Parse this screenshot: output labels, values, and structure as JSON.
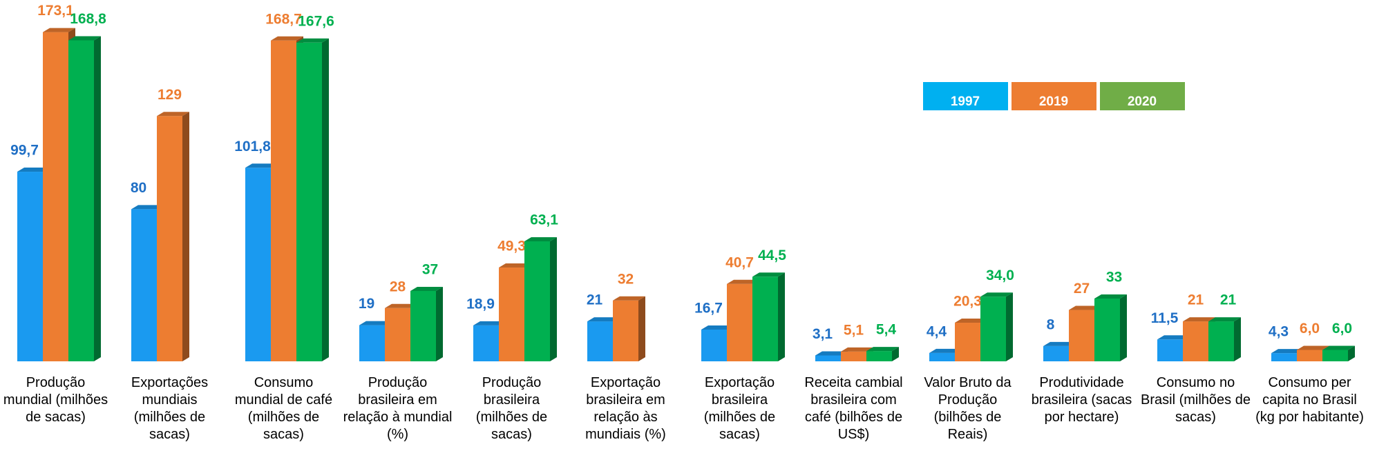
{
  "chart_data": {
    "type": "bar3d",
    "categories": [
      "Produção mundial (milhões de sacas)",
      "Exportações mundiais (milhões de sacas)",
      "Consumo mundial de café (milhões de sacas)",
      "Produção brasileira em relação à mundial (%)",
      "Produção brasileira (milhões de sacas)",
      "Exportação brasileira em relação às mundiais (%)",
      "Exportação brasileira (milhões de sacas)",
      "Receita cambial brasileira com café (bilhões de US$)",
      "Valor Bruto da Produção (bilhões de Reais)",
      "Produtividade brasileira (sacas por hectare)",
      "Consumo no Brasil (milhões de sacas)",
      "Consumo per capita no Brasil (kg por habitante)"
    ],
    "series": [
      {
        "name": "1997",
        "color": "#1a9af0",
        "label_color": "#1f6fc5",
        "legend_color": "#00b0f0",
        "values": [
          99.7,
          80,
          101.8,
          19,
          18.9,
          21,
          16.7,
          3.1,
          4.4,
          8,
          11.5,
          4.3
        ],
        "value_labels": [
          "99,7",
          "80",
          "101,8",
          "19",
          "18,9",
          "21",
          "16,7",
          "3,1",
          "4,4",
          "8",
          "11,5",
          "4,3"
        ]
      },
      {
        "name": "2019",
        "color": "#ed7d31",
        "label_color": "#ed7d31",
        "legend_color": "#ed7d31",
        "values": [
          173.1,
          129,
          168.7,
          28,
          49.3,
          32,
          40.7,
          5.1,
          20.3,
          27,
          21,
          6.0
        ],
        "value_labels": [
          "173,1",
          "129",
          "168,7",
          "28",
          "49,3",
          "32",
          "40,7",
          "5,1",
          "20,3",
          "27",
          "21",
          "6,0"
        ]
      },
      {
        "name": "2020",
        "color": "#00b050",
        "label_color": "#00b050",
        "legend_color": "#70ad47",
        "values": [
          168.8,
          null,
          167.6,
          37,
          63.1,
          null,
          44.5,
          5.4,
          34.0,
          33,
          21,
          6.0
        ],
        "value_labels": [
          "168,8",
          null,
          "167,6",
          "37",
          "63,1",
          null,
          "44,5",
          "5,4",
          "34,0",
          "33",
          "21",
          "6,0"
        ]
      }
    ],
    "ylim": [
      0,
      190
    ]
  }
}
